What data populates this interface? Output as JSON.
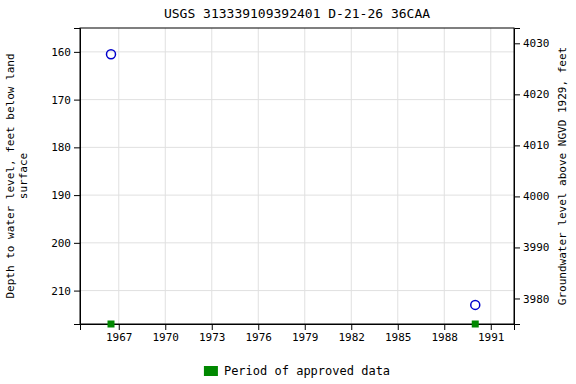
{
  "chart_data": {
    "type": "scatter",
    "title": "USGS 313339109392401 D-21-26 36CAA",
    "y_label": "Depth to water level, feet below land\nsurface",
    "y2_label": "Groundwater level above NGVD 1929, feet",
    "x": [
      1966.5,
      1990.0
    ],
    "series": [
      {
        "color": "#0000cc",
        "marker": "circle",
        "values": [
          160.5,
          213.0
        ]
      },
      {
        "name": "Period of approved data",
        "color": "#008800",
        "marker": "square",
        "values": [
          217,
          217
        ]
      }
    ],
    "xlim": [
      1964.5,
      1992.5
    ],
    "xticks": [
      1967,
      1970,
      1973,
      1976,
      1979,
      1982,
      1985,
      1988,
      1991
    ],
    "ylim": [
      217,
      155
    ],
    "yticks": [
      160,
      170,
      180,
      190,
      200,
      210
    ],
    "y2lim": [
      3975,
      4033
    ],
    "y2ticks": [
      4030,
      4020,
      4010,
      4000,
      3990,
      3980
    ],
    "grid": true,
    "legend": "bottom"
  }
}
